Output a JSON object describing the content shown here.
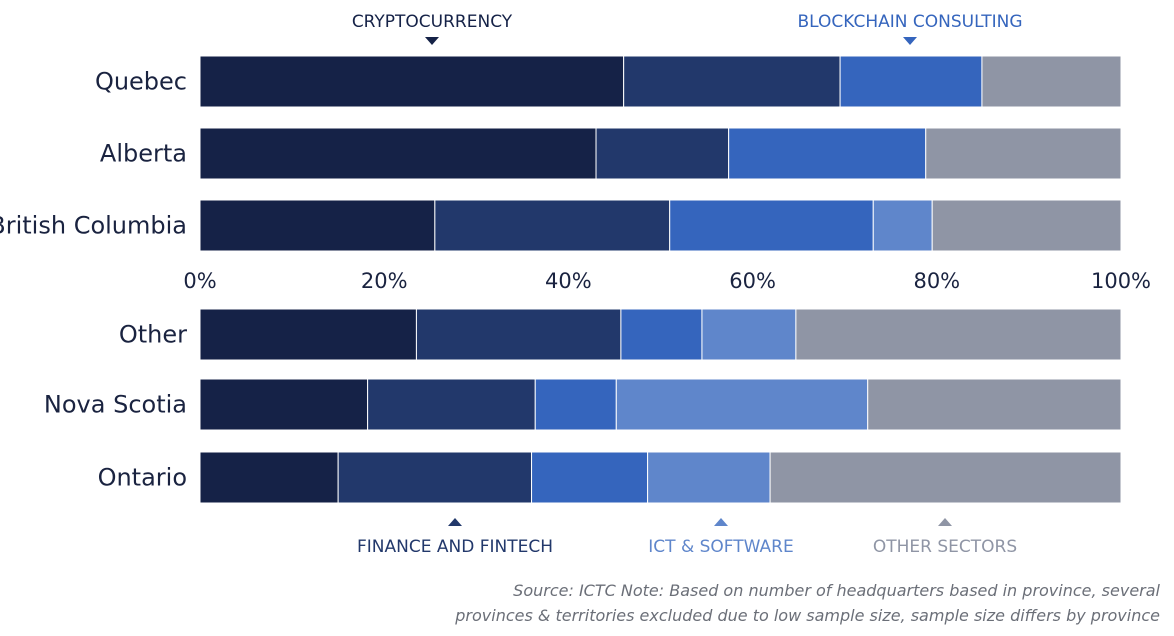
{
  "chart_data": {
    "type": "bar",
    "orientation": "horizontal",
    "stacked": true,
    "xlim": [
      0,
      100
    ],
    "x_ticks": [
      "0%",
      "20%",
      "40%",
      "60%",
      "80%",
      "100%"
    ],
    "series_names": [
      "CRYPTOCURRENCY",
      "FINANCE AND FINTECH",
      "BLOCKCHAIN CONSULTING",
      "ICT & SOFTWARE",
      "OTHER SECTORS"
    ],
    "colors": [
      "#152247",
      "#22386b",
      "#3565bd",
      "#5f86cb",
      "#8f95a5"
    ],
    "groups": [
      {
        "categories": [
          "Quebec",
          "Alberta",
          "British Columbia"
        ],
        "series": [
          {
            "name": "CRYPTOCURRENCY",
            "values": [
              46,
              43,
              25.5
            ]
          },
          {
            "name": "FINANCE AND FINTECH",
            "values": [
              23.5,
              14.4,
              25.5
            ]
          },
          {
            "name": "BLOCKCHAIN CONSULTING",
            "values": [
              15.4,
              21.4,
              22.1
            ]
          },
          {
            "name": "ICT & SOFTWARE",
            "values": [
              0,
              0,
              6.4
            ]
          },
          {
            "name": "OTHER SECTORS",
            "values": [
              15.1,
              21.2,
              20.5
            ]
          }
        ]
      },
      {
        "categories": [
          "Other",
          "Nova Scotia",
          "Ontario"
        ],
        "series": [
          {
            "name": "CRYPTOCURRENCY",
            "values": [
              23.5,
              18.2,
              15
            ]
          },
          {
            "name": "FINANCE AND FINTECH",
            "values": [
              22.2,
              18.2,
              21
            ]
          },
          {
            "name": "BLOCKCHAIN CONSULTING",
            "values": [
              8.8,
              8.8,
              12.6
            ]
          },
          {
            "name": "ICT & SOFTWARE",
            "values": [
              10.2,
              27.3,
              13.3
            ]
          },
          {
            "name": "OTHER SECTORS",
            "values": [
              35.3,
              27.5,
              38.1
            ]
          }
        ]
      }
    ]
  },
  "legend": {
    "top": [
      "CRYPTOCURRENCY",
      "BLOCKCHAIN CONSULTING"
    ],
    "bottom": [
      "FINANCE AND FINTECH",
      "ICT & SOFTWARE",
      "OTHER SECTORS"
    ]
  },
  "source": {
    "line1": "Source: ICTC  Note: Based on number of headquarters based in province, several",
    "line2": "provinces & territories excluded due to low sample size, sample size differs by province"
  }
}
